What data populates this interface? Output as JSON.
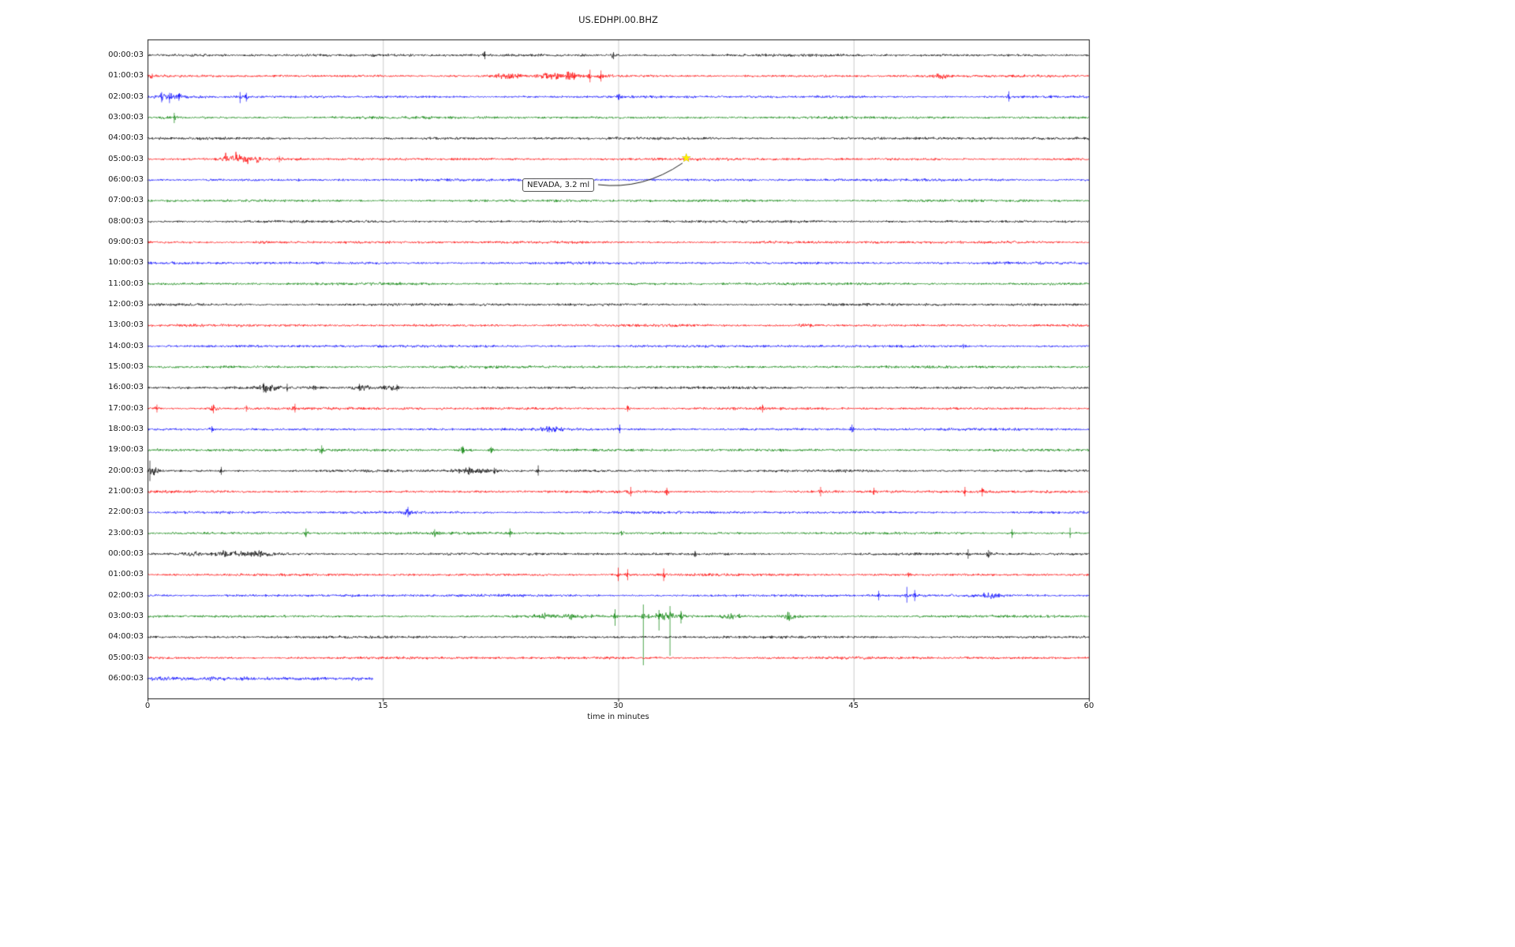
{
  "chart_data": {
    "type": "line",
    "subtype": "helicorder-seismogram",
    "title": "US.EDHPI.00.BHZ",
    "xlabel": "time in minutes",
    "x_range_minutes": [
      0,
      60
    ],
    "grid": true,
    "x_ticks": [
      {
        "minute": 0,
        "label": "0"
      },
      {
        "minute": 15,
        "label": "15"
      },
      {
        "minute": 30,
        "label": "30"
      },
      {
        "minute": 45,
        "label": "45"
      },
      {
        "minute": 60,
        "label": "60"
      }
    ],
    "palette": {
      "black": "#000000",
      "red": "#ff0000",
      "blue": "#0000ff",
      "green": "#008000",
      "grid": "#cccccc",
      "marker": "#ffee00"
    },
    "annotation": {
      "text": "NEVADA, 3.2 ml",
      "row_label": "05:00:03",
      "row_index": 5,
      "minute": 34.4,
      "marker": "star"
    },
    "rows": [
      {
        "label": "00:00:03",
        "color": "black",
        "events": [
          {
            "t": "b",
            "m": 3,
            "w": 3,
            "a": 0.6
          },
          {
            "t": "s",
            "m": 21.5,
            "u": 5,
            "d": 5
          },
          {
            "t": "s",
            "m": 29.7,
            "u": 4,
            "d": 5
          }
        ]
      },
      {
        "label": "01:00:03",
        "color": "red",
        "events": [
          {
            "t": "s",
            "m": 0.3,
            "u": 3,
            "d": 3
          },
          {
            "t": "b",
            "m": 23,
            "w": 1.2,
            "a": 2.5
          },
          {
            "t": "b",
            "m": 25.6,
            "w": 1,
            "a": 3
          },
          {
            "t": "b",
            "m": 26.9,
            "w": 0.7,
            "a": 3.5
          },
          {
            "t": "s",
            "m": 28.2,
            "u": 8,
            "d": 8
          },
          {
            "t": "s",
            "m": 28.9,
            "u": 7,
            "d": 7
          },
          {
            "t": "b",
            "m": 50.6,
            "w": 0.6,
            "a": 2.5
          }
        ]
      },
      {
        "label": "02:00:03",
        "color": "blue",
        "events": [
          {
            "t": "s",
            "m": 0.9,
            "u": 6,
            "d": 7
          },
          {
            "t": "s",
            "m": 1.4,
            "u": 5,
            "d": 8
          },
          {
            "t": "s",
            "m": 2.0,
            "u": 4,
            "d": 5
          },
          {
            "t": "b",
            "m": 1.5,
            "w": 1.2,
            "a": 1.5
          },
          {
            "t": "s",
            "m": 5.9,
            "u": 6,
            "d": 8
          },
          {
            "t": "s",
            "m": 6.3,
            "u": 5,
            "d": 6
          },
          {
            "t": "s",
            "m": 30.0,
            "u": 3,
            "d": 3
          },
          {
            "t": "s",
            "m": 54.9,
            "u": 7,
            "d": 6
          }
        ]
      },
      {
        "label": "03:00:03",
        "color": "green",
        "events": [
          {
            "t": "s",
            "m": 1.7,
            "u": 6,
            "d": 7
          }
        ]
      },
      {
        "label": "04:00:03",
        "color": "black",
        "events": []
      },
      {
        "label": "05:00:03",
        "color": "red",
        "events": [
          {
            "t": "b",
            "m": 5.0,
            "w": 0.4,
            "a": 5
          },
          {
            "t": "b",
            "m": 5.7,
            "w": 0.5,
            "a": 6
          },
          {
            "t": "b",
            "m": 6.4,
            "w": 0.4,
            "a": 5
          },
          {
            "t": "b",
            "m": 7.0,
            "w": 0.3,
            "a": 4
          },
          {
            "t": "s",
            "m": 8.4,
            "u": 4,
            "d": 4
          }
        ]
      },
      {
        "label": "06:00:03",
        "color": "blue",
        "events": []
      },
      {
        "label": "07:00:03",
        "color": "green",
        "events": []
      },
      {
        "label": "08:00:03",
        "color": "black",
        "events": []
      },
      {
        "label": "09:00:03",
        "color": "red",
        "events": [
          {
            "t": "b",
            "m": 7.5,
            "w": 0.8,
            "a": 1.2
          }
        ]
      },
      {
        "label": "10:00:03",
        "color": "blue",
        "events": []
      },
      {
        "label": "11:00:03",
        "color": "green",
        "events": []
      },
      {
        "label": "12:00:03",
        "color": "black",
        "events": []
      },
      {
        "label": "13:00:03",
        "color": "red",
        "events": [
          {
            "t": "b",
            "m": 42,
            "w": 0.8,
            "a": 1.2
          }
        ]
      },
      {
        "label": "14:00:03",
        "color": "blue",
        "events": [
          {
            "t": "s",
            "m": 52,
            "u": 3,
            "d": 3
          }
        ]
      },
      {
        "label": "15:00:03",
        "color": "green",
        "events": []
      },
      {
        "label": "16:00:03",
        "color": "black",
        "events": [
          {
            "t": "s",
            "m": 7.4,
            "u": 6,
            "d": 6
          },
          {
            "t": "b",
            "m": 7.7,
            "w": 0.9,
            "a": 3.5
          },
          {
            "t": "s",
            "m": 8.9,
            "u": 5,
            "d": 5
          },
          {
            "t": "s",
            "m": 10.6,
            "u": 3,
            "d": 3
          },
          {
            "t": "b",
            "m": 13.6,
            "w": 0.8,
            "a": 3
          },
          {
            "t": "s",
            "m": 13.5,
            "u": 5,
            "d": 4
          },
          {
            "t": "b",
            "m": 15.4,
            "w": 0.8,
            "a": 2.5
          },
          {
            "t": "s",
            "m": 15.9,
            "u": 4,
            "d": 4
          }
        ]
      },
      {
        "label": "17:00:03",
        "color": "red",
        "events": [
          {
            "t": "s",
            "m": 0.6,
            "u": 5,
            "d": 5
          },
          {
            "t": "s",
            "m": 4.2,
            "u": 5,
            "d": 6
          },
          {
            "t": "b",
            "m": 4.2,
            "w": 0.5,
            "a": 1.5
          },
          {
            "t": "s",
            "m": 6.3,
            "u": 4,
            "d": 4
          },
          {
            "t": "s",
            "m": 9.4,
            "u": 6,
            "d": 5
          },
          {
            "t": "s",
            "m": 30.6,
            "u": 4,
            "d": 4
          },
          {
            "t": "s",
            "m": 39.2,
            "u": 5,
            "d": 5
          }
        ]
      },
      {
        "label": "18:00:03",
        "color": "blue",
        "events": [
          {
            "t": "s",
            "m": 4.1,
            "u": 4,
            "d": 4
          },
          {
            "t": "b",
            "m": 25.8,
            "w": 1.2,
            "a": 1.8
          },
          {
            "t": "s",
            "m": 25.6,
            "u": 4,
            "d": 4
          },
          {
            "t": "s",
            "m": 30.1,
            "u": 6,
            "d": 5
          },
          {
            "t": "s",
            "m": 44.9,
            "u": 6,
            "d": 4
          }
        ]
      },
      {
        "label": "19:00:03",
        "color": "green",
        "events": [
          {
            "t": "s",
            "m": 11.1,
            "u": 6,
            "d": 5
          },
          {
            "t": "s",
            "m": 20.1,
            "u": 5,
            "d": 5
          },
          {
            "t": "b",
            "m": 20.3,
            "w": 0.8,
            "a": 1.5
          },
          {
            "t": "s",
            "m": 21.9,
            "u": 4,
            "d": 4
          }
        ]
      },
      {
        "label": "20:00:03",
        "color": "black",
        "events": [
          {
            "t": "s",
            "m": 0.15,
            "u": 13,
            "d": 13
          },
          {
            "t": "b",
            "m": 0.3,
            "w": 0.4,
            "a": 5
          },
          {
            "t": "s",
            "m": 4.7,
            "u": 5,
            "d": 5
          },
          {
            "t": "b",
            "m": 20.7,
            "w": 1.5,
            "a": 2.5
          },
          {
            "t": "s",
            "m": 20.5,
            "u": 5,
            "d": 5
          },
          {
            "t": "s",
            "m": 22.1,
            "u": 4,
            "d": 4
          },
          {
            "t": "s",
            "m": 24.9,
            "u": 7,
            "d": 6
          }
        ]
      },
      {
        "label": "21:00:03",
        "color": "red",
        "events": [
          {
            "t": "s",
            "m": 30.8,
            "u": 6,
            "d": 6
          },
          {
            "t": "s",
            "m": 33.1,
            "u": 5,
            "d": 5
          },
          {
            "t": "s",
            "m": 42.9,
            "u": 6,
            "d": 6
          },
          {
            "t": "s",
            "m": 46.3,
            "u": 5,
            "d": 4
          },
          {
            "t": "s",
            "m": 52.1,
            "u": 6,
            "d": 6
          },
          {
            "t": "s",
            "m": 53.2,
            "u": 5,
            "d": 6
          }
        ]
      },
      {
        "label": "22:00:03",
        "color": "blue",
        "events": [
          {
            "t": "s",
            "m": 16.6,
            "u": 7,
            "d": 6
          },
          {
            "t": "b",
            "m": 16.6,
            "w": 0.5,
            "a": 1.5
          }
        ]
      },
      {
        "label": "23:00:03",
        "color": "green",
        "events": [
          {
            "t": "s",
            "m": 10.1,
            "u": 6,
            "d": 5
          },
          {
            "t": "s",
            "m": 18.3,
            "u": 5,
            "d": 5
          },
          {
            "t": "s",
            "m": 23.1,
            "u": 6,
            "d": 5
          },
          {
            "t": "s",
            "m": 30.2,
            "u": 3,
            "d": 3
          },
          {
            "t": "s",
            "m": 55.1,
            "u": 5,
            "d": 6
          },
          {
            "t": "s",
            "m": 58.8,
            "u": 7,
            "d": 6
          }
        ]
      },
      {
        "label": "00:00:03",
        "color": "black",
        "events": [
          {
            "t": "b",
            "m": 2.9,
            "w": 0.6,
            "a": 2.5
          },
          {
            "t": "b",
            "m": 5.2,
            "w": 1.2,
            "a": 2.5
          },
          {
            "t": "b",
            "m": 7.1,
            "w": 0.9,
            "a": 2.5
          },
          {
            "t": "s",
            "m": 34.9,
            "u": 4,
            "d": 4
          },
          {
            "t": "s",
            "m": 52.3,
            "u": 6,
            "d": 6
          },
          {
            "t": "s",
            "m": 53.6,
            "u": 5,
            "d": 5
          }
        ]
      },
      {
        "label": "01:00:03",
        "color": "red",
        "events": [
          {
            "t": "s",
            "m": 30.0,
            "u": 9,
            "d": 8
          },
          {
            "t": "s",
            "m": 30.6,
            "u": 7,
            "d": 7
          },
          {
            "t": "s",
            "m": 32.9,
            "u": 8,
            "d": 8
          },
          {
            "t": "s",
            "m": 48.5,
            "u": 3,
            "d": 3
          }
        ]
      },
      {
        "label": "02:00:03",
        "color": "blue",
        "events": [
          {
            "t": "s",
            "m": 46.6,
            "u": 6,
            "d": 6
          },
          {
            "t": "s",
            "m": 48.4,
            "u": 11,
            "d": 9
          },
          {
            "t": "s",
            "m": 48.9,
            "u": 7,
            "d": 7
          },
          {
            "t": "b",
            "m": 53.6,
            "w": 1.0,
            "a": 2.5
          }
        ]
      },
      {
        "label": "03:00:03",
        "color": "green",
        "events": [
          {
            "t": "b",
            "m": 25.4,
            "w": 0.7,
            "a": 2.5
          },
          {
            "t": "b",
            "m": 26.9,
            "w": 0.6,
            "a": 2.5
          },
          {
            "t": "b",
            "m": 28.0,
            "w": 0.5,
            "a": 2
          },
          {
            "t": "s",
            "m": 29.8,
            "u": 9,
            "d": 12
          },
          {
            "t": "s",
            "m": 31.6,
            "u": 15,
            "d": 62
          },
          {
            "t": "s",
            "m": 32.6,
            "u": 8,
            "d": 18
          },
          {
            "t": "s",
            "m": 33.3,
            "u": 13,
            "d": 50
          },
          {
            "t": "s",
            "m": 34.0,
            "u": 7,
            "d": 9
          },
          {
            "t": "b",
            "m": 33,
            "w": 1.5,
            "a": 3
          },
          {
            "t": "b",
            "m": 37.2,
            "w": 0.8,
            "a": 2.5
          },
          {
            "t": "b",
            "m": 40.9,
            "w": 0.6,
            "a": 3
          },
          {
            "t": "s",
            "m": 40.9,
            "u": 5,
            "d": 6
          }
        ]
      },
      {
        "label": "04:00:03",
        "color": "black",
        "events": []
      },
      {
        "label": "05:00:03",
        "color": "red",
        "events": []
      },
      {
        "label": "06:00:03",
        "color": "blue",
        "base": 2.0,
        "end": 14.4,
        "events": []
      }
    ]
  }
}
